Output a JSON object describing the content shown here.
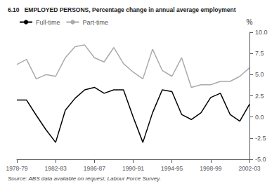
{
  "chart_data": {
    "type": "line",
    "title": "6.10   EMPLOYED PERSONS, Percentage change in annual average employment",
    "annotations": [
      "Source: ABS data available on request, Labour Force Survey."
    ],
    "ylabel": "%",
    "categories": [
      "1978-79",
      null,
      null,
      null,
      "1982-83",
      null,
      null,
      null,
      "1986-87",
      null,
      null,
      null,
      "1990-91",
      null,
      null,
      null,
      "1994-95",
      null,
      null,
      null,
      "1998-99",
      null,
      null,
      null,
      "2002-03"
    ],
    "series": [
      {
        "name": "Full-time",
        "color": "#000000",
        "values": [
          2.0,
          2.0,
          0.2,
          -1.5,
          -3.0,
          0.8,
          2.2,
          3.2,
          3.5,
          2.8,
          3.2,
          3.2,
          0.0,
          -3.0,
          0.5,
          3.2,
          3.0,
          0.3,
          -0.3,
          0.5,
          2.3,
          2.8,
          0.3,
          -0.5,
          1.5
        ]
      },
      {
        "name": "Part-time",
        "color": "#aaaaaa",
        "values": [
          6.2,
          6.8,
          4.5,
          5.0,
          4.8,
          7.0,
          8.3,
          8.5,
          7.0,
          6.5,
          8.2,
          6.3,
          5.3,
          4.5,
          8.0,
          5.5,
          4.8,
          7.0,
          3.5,
          3.8,
          3.8,
          4.2,
          4.2,
          4.8,
          5.8
        ]
      }
    ],
    "ylim": [
      -5.0,
      10.0
    ],
    "yticks": [
      {
        "value": -5.0,
        "label": "-5.0"
      },
      -2.5,
      {
        "value": 0.0,
        "label": "0.0"
      },
      2.5,
      {
        "value": 5.0,
        "label": "5.0"
      },
      7.5,
      {
        "value": 10.0,
        "label": "10.0"
      }
    ],
    "grid": false,
    "legend": "upper left"
  }
}
